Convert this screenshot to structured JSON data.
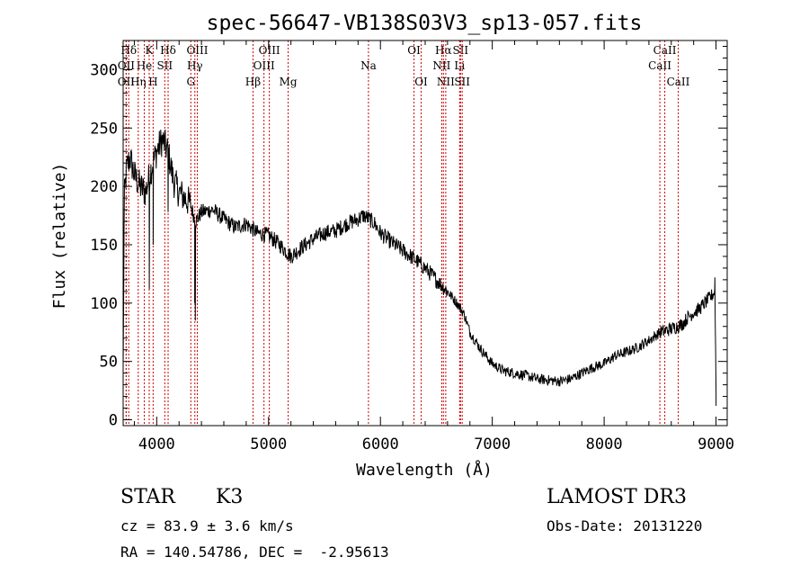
{
  "chart_data": {
    "type": "line",
    "title": "spec-56647-VB138S03V3_sp13-057.fits",
    "xlabel": "Wavelength (Å)",
    "ylabel": "Flux (relative)",
    "xlim": [
      3700,
      9100
    ],
    "ylim": [
      -5,
      325
    ],
    "xticks": [
      4000,
      5000,
      6000,
      7000,
      8000,
      9000
    ],
    "yticks": [
      0,
      50,
      100,
      150,
      200,
      250,
      300
    ],
    "grid": false,
    "spectrum_anchors": {
      "x": [
        3700,
        3710,
        3730,
        3760,
        3800,
        3850,
        3900,
        3950,
        4000,
        4050,
        4100,
        4150,
        4200,
        4250,
        4300,
        4330,
        4350,
        4400,
        4500,
        4600,
        4700,
        4800,
        4900,
        5000,
        5100,
        5200,
        5300,
        5400,
        5500,
        5600,
        5700,
        5800,
        5850,
        5900,
        5950,
        6000,
        6100,
        6200,
        6300,
        6400,
        6500,
        6600,
        6700,
        6750,
        6800,
        6900,
        7000,
        7100,
        7200,
        7300,
        7400,
        7500,
        7600,
        7700,
        7800,
        7900,
        8000,
        8100,
        8200,
        8300,
        8400,
        8500,
        8600,
        8700,
        8750,
        8800,
        8850,
        8900,
        8950,
        8990,
        9000
      ],
      "y": [
        40,
        190,
        215,
        225,
        210,
        200,
        195,
        215,
        230,
        240,
        230,
        205,
        195,
        190,
        185,
        175,
        170,
        178,
        180,
        172,
        165,
        168,
        160,
        158,
        150,
        140,
        148,
        155,
        160,
        162,
        168,
        172,
        175,
        172,
        168,
        160,
        152,
        145,
        138,
        130,
        120,
        110,
        98,
        90,
        75,
        60,
        48,
        42,
        40,
        38,
        35,
        34,
        33,
        35,
        40,
        45,
        48,
        55,
        58,
        62,
        68,
        75,
        78,
        82,
        88,
        92,
        95,
        100,
        105,
        110,
        25
      ]
    },
    "sharp_features": [
      {
        "x": 3934,
        "y": 112
      },
      {
        "x": 3968,
        "y": 150
      },
      {
        "x": 4102,
        "y": 178
      },
      {
        "x": 4340,
        "y": 100
      },
      {
        "x": 4345,
        "y": 85
      },
      {
        "x": 8990,
        "y": 122
      },
      {
        "x": 9000,
        "y": 12
      }
    ],
    "spectral_lines": [
      {
        "label": "Hδ",
        "x": 3750,
        "row": 0
      },
      {
        "label": "K",
        "x": 3933,
        "row": 0
      },
      {
        "label": "Hδ",
        "x": 4102,
        "row": 0
      },
      {
        "label": "OIII",
        "x": 4363,
        "row": 0
      },
      {
        "label": "OIII",
        "x": 5007,
        "row": 0
      },
      {
        "label": "OI",
        "x": 6300,
        "row": 0
      },
      {
        "label": "Hα",
        "x": 6563,
        "row": 0
      },
      {
        "label": "SII",
        "x": 6716,
        "row": 0
      },
      {
        "label": "CaII",
        "x": 8542,
        "row": 0
      },
      {
        "label": "OII",
        "x": 3727,
        "row": 1
      },
      {
        "label": "He",
        "x": 3889,
        "row": 1
      },
      {
        "label": "SII",
        "x": 4072,
        "row": 1
      },
      {
        "label": "Hγ",
        "x": 4341,
        "row": 1
      },
      {
        "label": "OIII",
        "x": 4959,
        "row": 1
      },
      {
        "label": "Na",
        "x": 5893,
        "row": 1
      },
      {
        "label": "NII",
        "x": 6548,
        "row": 1
      },
      {
        "label": "Li",
        "x": 6708,
        "row": 1
      },
      {
        "label": "CaII",
        "x": 8498,
        "row": 1
      },
      {
        "label": "OII",
        "x": 3727,
        "row": 2
      },
      {
        "label": "Hη",
        "x": 3835,
        "row": 2
      },
      {
        "label": "H",
        "x": 3968,
        "row": 2
      },
      {
        "label": "G",
        "x": 4305,
        "row": 2
      },
      {
        "label": "Hβ",
        "x": 4861,
        "row": 2
      },
      {
        "label": "Mg",
        "x": 5175,
        "row": 2
      },
      {
        "label": "OI",
        "x": 6364,
        "row": 2
      },
      {
        "label": "NII",
        "x": 6584,
        "row": 2
      },
      {
        "label": "SII",
        "x": 6731,
        "row": 2
      },
      {
        "label": "CaII",
        "x": 8662,
        "row": 2
      }
    ]
  },
  "info": {
    "object_class": "STAR",
    "subclass": "K3",
    "survey": "LAMOST DR3",
    "redshift_line": "cz = 83.9 ± 3.6 km/s",
    "obs_date_line": "Obs-Date: 20131220",
    "coords_line": "RA = 140.54786, DEC =  -2.95613"
  }
}
